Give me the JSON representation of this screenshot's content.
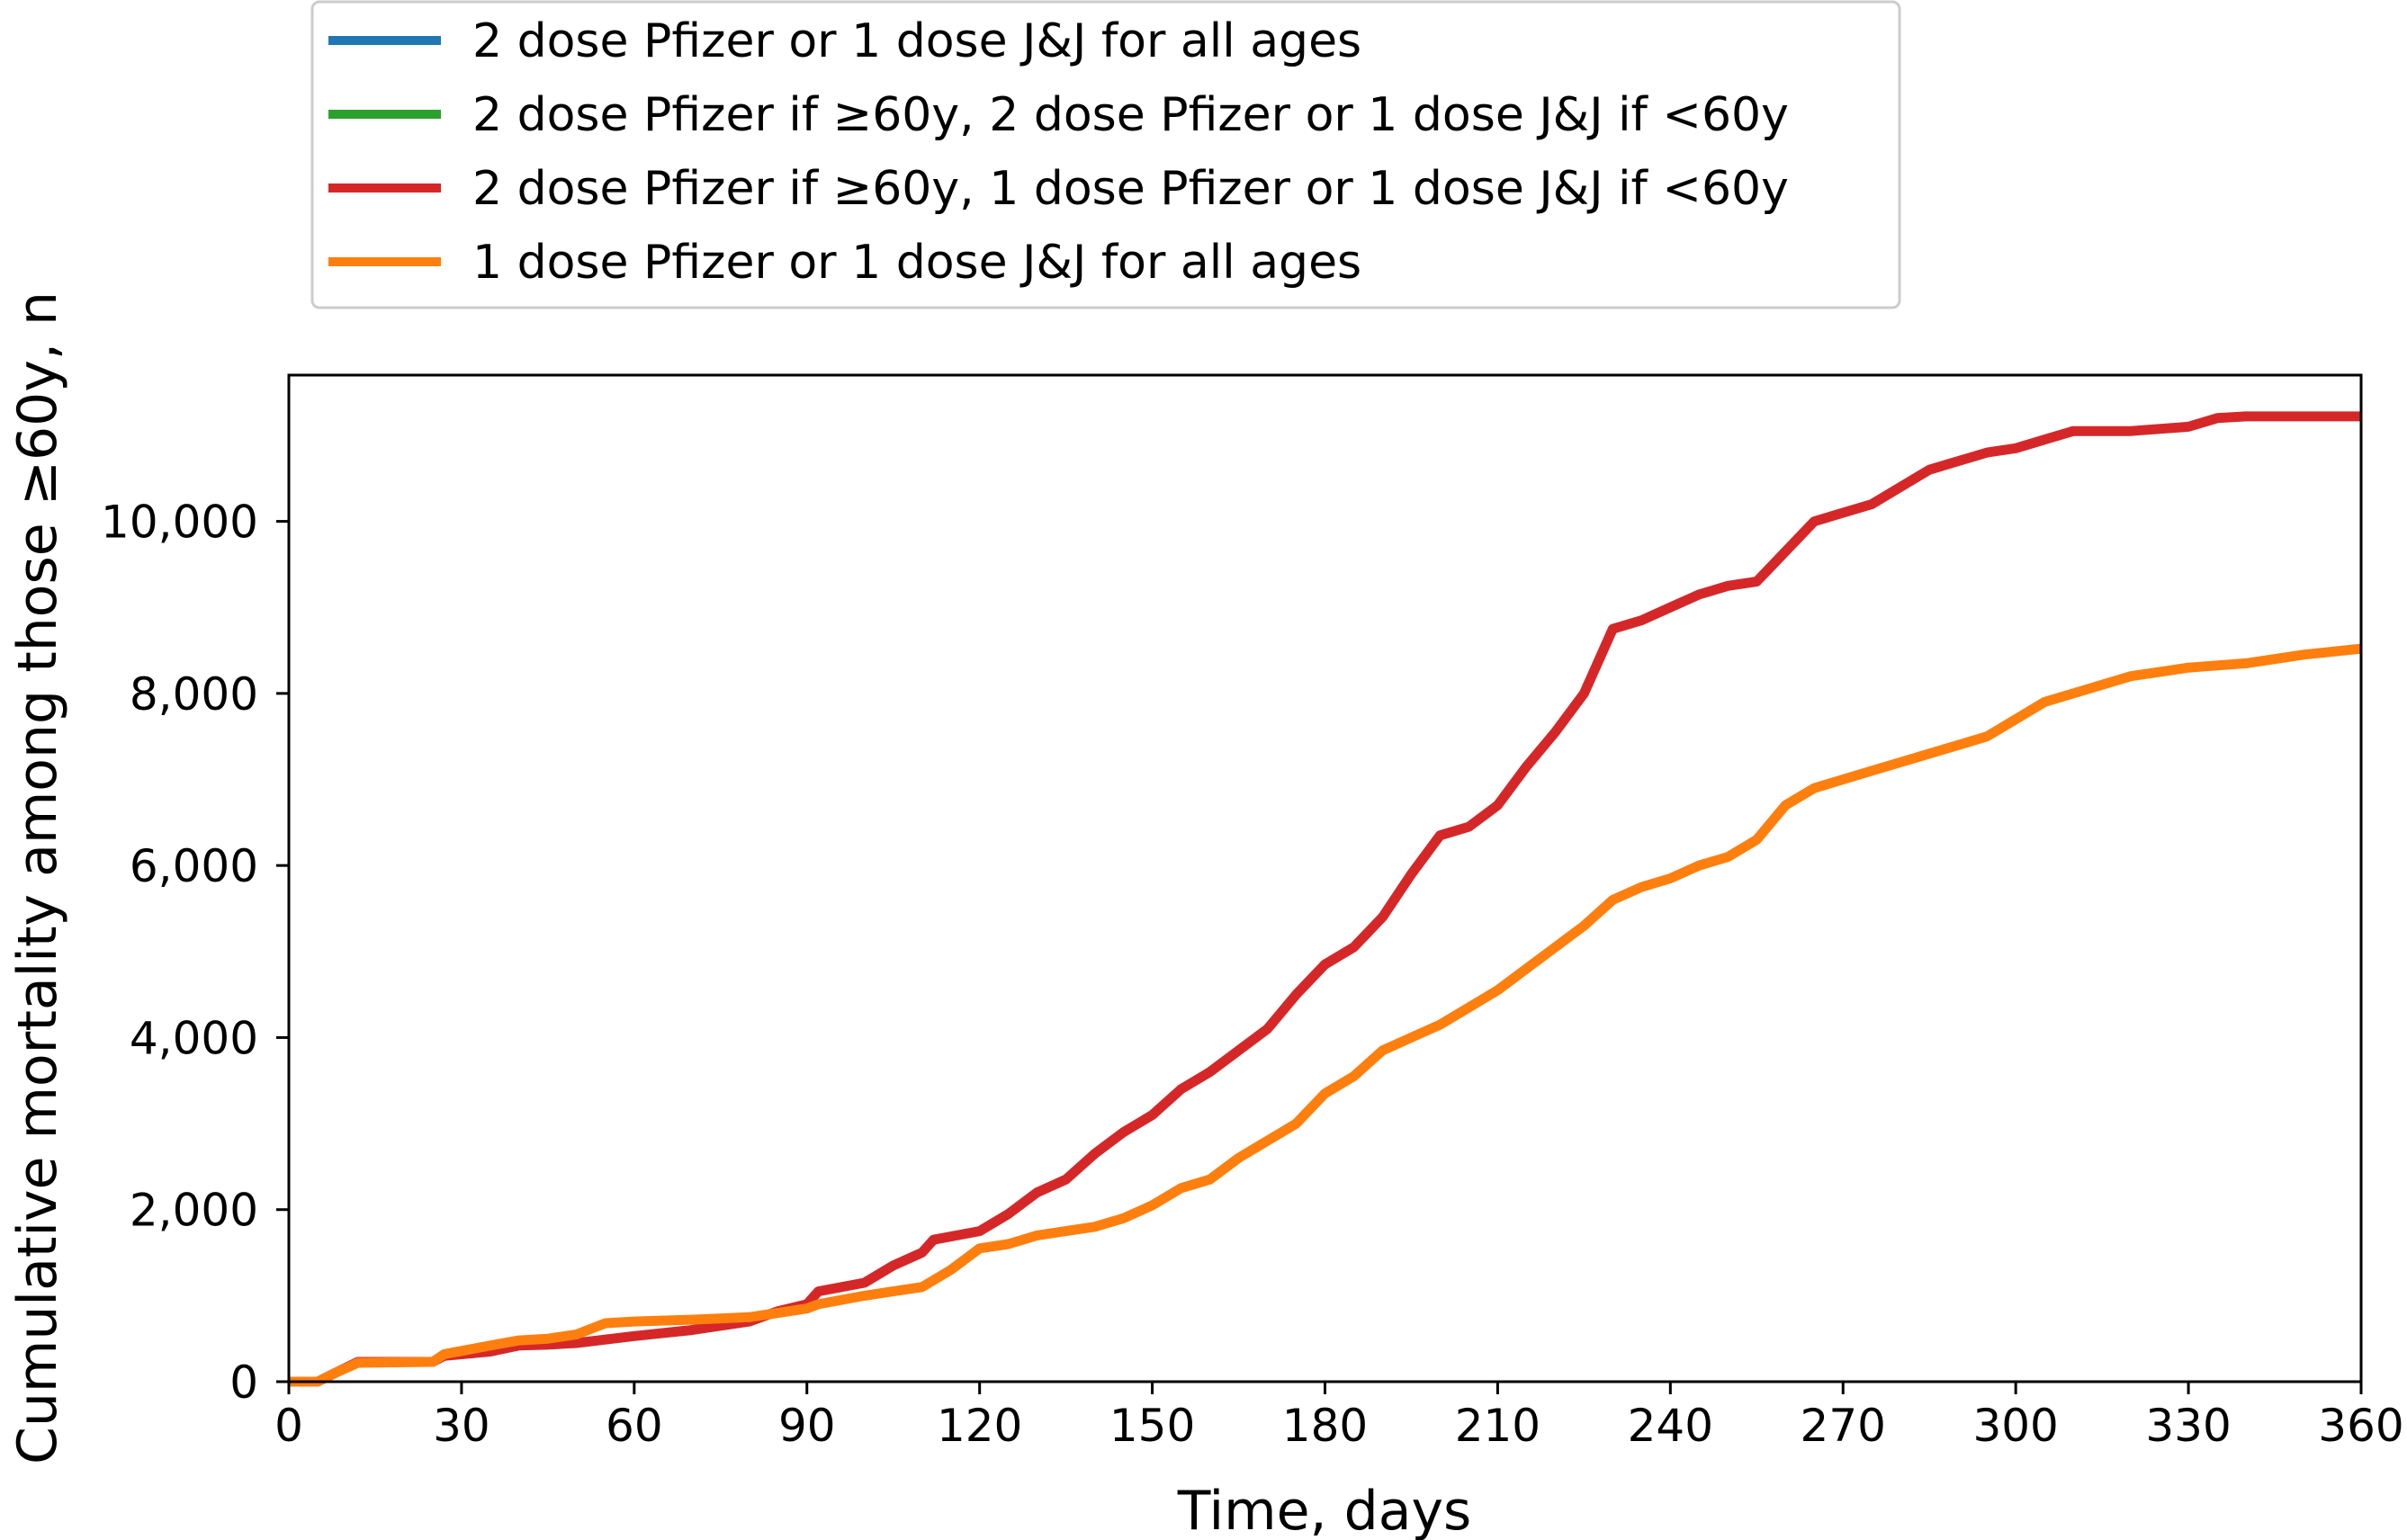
{
  "chart_data": {
    "type": "line",
    "title": "",
    "xlabel": "Time, days",
    "ylabel": "Cumulative mortality among those ≥60y, n",
    "xlim": [
      0,
      360
    ],
    "ylim": [
      0,
      11700
    ],
    "x_ticks": [
      0,
      30,
      60,
      90,
      120,
      150,
      180,
      210,
      240,
      270,
      300,
      330,
      360
    ],
    "x_tick_labels": [
      "0",
      "30",
      "60",
      "90",
      "120",
      "150",
      "180",
      "210",
      "240",
      "270",
      "300",
      "330",
      "360"
    ],
    "y_ticks": [
      0,
      2000,
      4000,
      6000,
      8000,
      10000
    ],
    "y_tick_labels": [
      "0",
      "2,000",
      "4,000",
      "6,000",
      "8,000",
      "10,000"
    ],
    "grid": false,
    "legend_position": "top-center, above plot",
    "series": [
      {
        "name": "2 dose Pfizer or 1 dose J&J for all ages",
        "color": "#1f77b4",
        "x": [
          0,
          360
        ],
        "y": [
          0,
          0
        ],
        "visible": false
      },
      {
        "name": "2 dose Pfizer if ≥60y, 2 dose Pfizer or 1 dose J&J if <60y",
        "color": "#2ca02c",
        "x": [
          0,
          360
        ],
        "y": [
          0,
          0
        ],
        "visible": false
      },
      {
        "name": "2 dose Pfizer if ≥60y, 1 dose Pfizer or 1 dose J&J if <60y",
        "color": "#d62728",
        "visible": true,
        "x": [
          0,
          5,
          8,
          12,
          25,
          27,
          35,
          40,
          45,
          50,
          60,
          70,
          80,
          85,
          90,
          92,
          100,
          105,
          110,
          112,
          120,
          125,
          130,
          135,
          140,
          145,
          150,
          155,
          160,
          165,
          170,
          175,
          180,
          185,
          190,
          195,
          200,
          205,
          210,
          215,
          220,
          225,
          230,
          235,
          240,
          245,
          250,
          255,
          260,
          265,
          270,
          275,
          280,
          285,
          290,
          295,
          300,
          305,
          310,
          320,
          330,
          335,
          340,
          350,
          360
        ],
        "y": [
          0,
          0,
          100,
          230,
          230,
          300,
          350,
          420,
          430,
          450,
          530,
          600,
          700,
          820,
          900,
          1050,
          1150,
          1350,
          1500,
          1650,
          1750,
          1950,
          2200,
          2350,
          2650,
          2900,
          3100,
          3400,
          3600,
          3850,
          4100,
          4500,
          4850,
          5050,
          5400,
          5900,
          6350,
          6450,
          6700,
          7150,
          7550,
          8000,
          8750,
          8850,
          9000,
          9150,
          9250,
          9300,
          9650,
          10000,
          10100,
          10200,
          10400,
          10600,
          10700,
          10800,
          10850,
          10950,
          11050,
          11050,
          11100,
          11200,
          11220,
          11220,
          11220
        ]
      },
      {
        "name": "1 dose Pfizer or 1 dose J&J for all ages",
        "color": "#ff7f0e",
        "visible": true,
        "x": [
          0,
          5,
          8,
          12,
          25,
          27,
          35,
          40,
          45,
          50,
          55,
          60,
          70,
          80,
          85,
          90,
          92,
          100,
          105,
          110,
          115,
          120,
          125,
          130,
          135,
          140,
          145,
          150,
          155,
          160,
          165,
          170,
          175,
          180,
          185,
          190,
          195,
          200,
          205,
          210,
          215,
          220,
          225,
          230,
          235,
          240,
          245,
          250,
          255,
          260,
          265,
          270,
          275,
          280,
          285,
          290,
          295,
          300,
          305,
          310,
          320,
          330,
          340,
          350,
          360
        ],
        "y": [
          0,
          0,
          100,
          220,
          230,
          320,
          420,
          480,
          500,
          550,
          680,
          700,
          720,
          750,
          800,
          850,
          900,
          1000,
          1050,
          1100,
          1300,
          1550,
          1600,
          1700,
          1750,
          1800,
          1900,
          2050,
          2250,
          2350,
          2600,
          2800,
          3000,
          3350,
          3550,
          3850,
          4000,
          4150,
          4350,
          4550,
          4800,
          5050,
          5300,
          5600,
          5750,
          5850,
          6000,
          6100,
          6300,
          6700,
          6900,
          7000,
          7100,
          7200,
          7300,
          7400,
          7500,
          7700,
          7900,
          8000,
          8200,
          8300,
          8350,
          8450,
          8520
        ]
      }
    ]
  }
}
